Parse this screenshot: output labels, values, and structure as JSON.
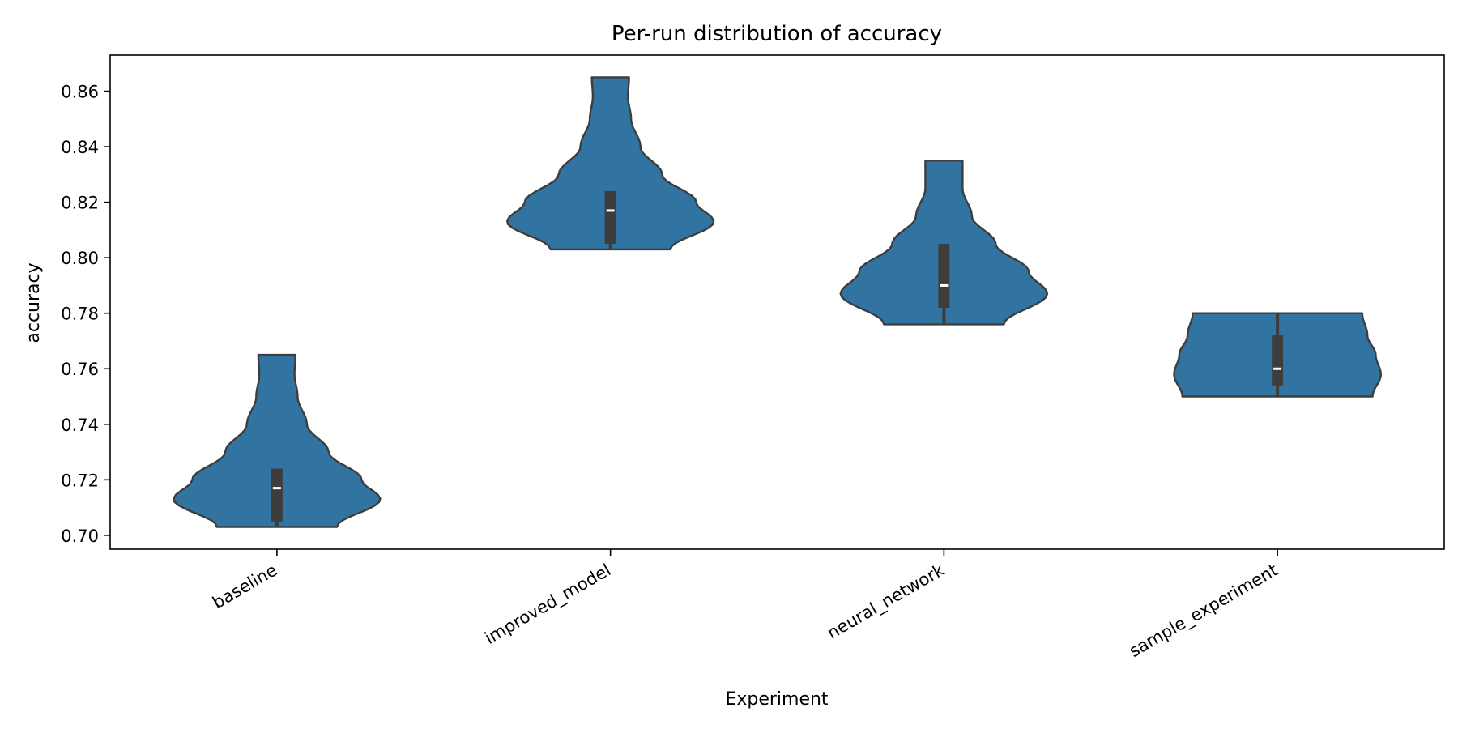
{
  "chart_data": {
    "type": "violin",
    "title": "Per-run distribution of accuracy",
    "xlabel": "Experiment",
    "ylabel": "accuracy",
    "categories": [
      "baseline",
      "improved_model",
      "neural_network",
      "sample_experiment"
    ],
    "ylim": [
      0.695,
      0.873
    ],
    "yticks": [
      "0.70",
      "0.72",
      "0.74",
      "0.76",
      "0.78",
      "0.80",
      "0.82",
      "0.84",
      "0.86"
    ],
    "grid": false,
    "violins": [
      {
        "category": "baseline",
        "min": 0.703,
        "max": 0.765,
        "q1": 0.705,
        "median": 0.717,
        "q3": 0.724,
        "whisker_low": 0.703,
        "whisker_high": 0.724,
        "profile": [
          [
            0.703,
            0.58
          ],
          [
            0.713,
            1.0
          ],
          [
            0.72,
            0.82
          ],
          [
            0.73,
            0.5
          ],
          [
            0.74,
            0.29
          ],
          [
            0.75,
            0.2
          ],
          [
            0.758,
            0.17
          ],
          [
            0.765,
            0.18
          ]
        ]
      },
      {
        "category": "improved_model",
        "min": 0.803,
        "max": 0.865,
        "q1": 0.805,
        "median": 0.817,
        "q3": 0.824,
        "whisker_low": 0.803,
        "whisker_high": 0.824,
        "profile": [
          [
            0.803,
            0.58
          ],
          [
            0.813,
            1.0
          ],
          [
            0.82,
            0.83
          ],
          [
            0.83,
            0.5
          ],
          [
            0.84,
            0.29
          ],
          [
            0.85,
            0.2
          ],
          [
            0.858,
            0.17
          ],
          [
            0.865,
            0.18
          ]
        ]
      },
      {
        "category": "neural_network",
        "min": 0.776,
        "max": 0.835,
        "q1": 0.782,
        "median": 0.79,
        "q3": 0.805,
        "whisker_low": 0.776,
        "whisker_high": 0.805,
        "profile": [
          [
            0.776,
            0.58
          ],
          [
            0.787,
            1.0
          ],
          [
            0.795,
            0.82
          ],
          [
            0.805,
            0.5
          ],
          [
            0.815,
            0.27
          ],
          [
            0.825,
            0.18
          ],
          [
            0.835,
            0.18
          ]
        ]
      },
      {
        "category": "sample_experiment",
        "min": 0.75,
        "max": 0.78,
        "q1": 0.754,
        "median": 0.76,
        "q3": 0.772,
        "whisker_low": 0.75,
        "whisker_high": 0.78,
        "profile": [
          [
            0.75,
            0.92
          ],
          [
            0.758,
            1.0
          ],
          [
            0.765,
            0.95
          ],
          [
            0.772,
            0.87
          ],
          [
            0.78,
            0.82
          ]
        ]
      }
    ],
    "colors": {
      "violin_fill": "#3274a1",
      "violin_edge": "#3d3d3d",
      "box": "#3d3d3d",
      "median": "#ffffff"
    }
  }
}
